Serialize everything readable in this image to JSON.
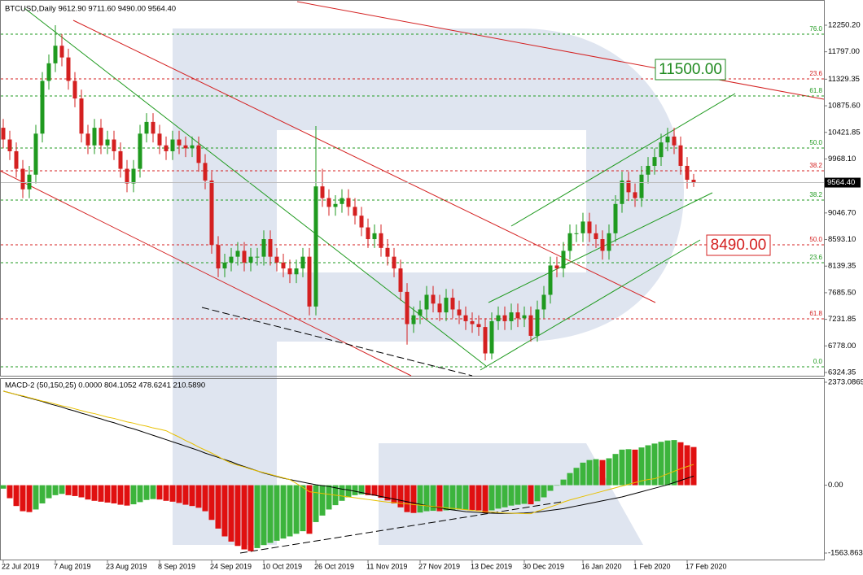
{
  "chart_data": [
    {
      "type": "candlestick",
      "title": "BTCUSD,Daily  9612.90 9711.60 9490.00 9564.40",
      "categories": [
        "22 Jul 2019",
        null,
        null,
        null,
        null,
        null,
        null,
        null,
        "7 Aug 2019",
        null,
        null,
        null,
        null,
        null,
        null,
        null,
        "23 Aug 2019",
        null,
        null,
        null,
        null,
        null,
        null,
        null,
        "8 Sep 2019",
        null,
        null,
        null,
        null,
        null,
        null,
        null,
        "24 Sep 2019",
        null,
        null,
        null,
        null,
        null,
        null,
        null,
        "10 Oct 2019",
        null,
        null,
        null,
        null,
        null,
        null,
        null,
        "26 Oct 2019",
        null,
        null,
        null,
        null,
        null,
        null,
        null,
        "11 Nov 2019",
        null,
        null,
        null,
        null,
        null,
        null,
        null,
        "27 Nov 2019",
        null,
        null,
        null,
        null,
        null,
        null,
        null,
        "13 Dec 2019",
        null,
        null,
        null,
        null,
        null,
        null,
        null,
        "30 Dec 2019",
        null,
        null,
        null,
        null,
        null,
        null,
        null,
        null,
        "16 Jan 2020",
        null,
        null,
        null,
        null,
        null,
        null,
        null,
        "1 Feb 2020",
        null,
        null,
        null,
        null,
        null,
        null,
        null,
        "17 Feb 2020",
        null
      ],
      "open": [
        10500,
        10300,
        10100,
        9800,
        9450,
        9700,
        10400,
        11300,
        11600,
        11900,
        11700,
        11300,
        11000,
        10400,
        10200,
        10500,
        10200,
        10300,
        10100,
        9800,
        9550,
        9800,
        10400,
        10600,
        10400,
        10200,
        10100,
        10300,
        10200,
        10150,
        10200,
        9900,
        9600,
        8500,
        8100,
        8200,
        8300,
        8400,
        8200,
        8300,
        8300,
        8600,
        8300,
        8200,
        8100,
        8000,
        8100,
        8300,
        7450,
        9500,
        9300,
        9150,
        9200,
        9300,
        9150,
        9000,
        8800,
        8600,
        8700,
        8450,
        8300,
        8100,
        7700,
        7150,
        7300,
        7400,
        7650,
        7500,
        7350,
        7600,
        7400,
        7300,
        7200,
        7150,
        7100,
        6650,
        7200,
        7300,
        7200,
        7350,
        7250,
        7300,
        6950,
        7400,
        7650,
        8150,
        8100,
        8400,
        8700,
        8700,
        8900,
        8700,
        8600,
        8400,
        8700,
        9200,
        9600,
        9400,
        9300,
        9700,
        9850,
        10000,
        10250,
        10350,
        10200,
        9850,
        9612.9
      ],
      "high": [
        10650,
        10450,
        10250,
        9950,
        9850,
        10550,
        11450,
        11750,
        12250,
        12100,
        11850,
        11450,
        11150,
        10550,
        10650,
        10650,
        10450,
        10450,
        10250,
        9950,
        9950,
        10550,
        10750,
        10750,
        10550,
        10350,
        10450,
        10450,
        10350,
        10350,
        10350,
        10050,
        9750,
        8650,
        8350,
        8450,
        8550,
        8550,
        8450,
        8450,
        8750,
        8750,
        8450,
        8350,
        8250,
        8250,
        8450,
        8450,
        10530,
        9800,
        9450,
        9350,
        9450,
        9450,
        9300,
        9150,
        8950,
        8850,
        8850,
        8600,
        8450,
        8250,
        7850,
        7450,
        7550,
        7800,
        7800,
        7650,
        7750,
        7750,
        7550,
        7450,
        7350,
        7300,
        7250,
        7350,
        7450,
        7450,
        7500,
        7500,
        7450,
        7450,
        7550,
        7800,
        8300,
        8300,
        8550,
        8850,
        8850,
        9050,
        9050,
        8850,
        8750,
        8850,
        9350,
        9750,
        9750,
        9550,
        9850,
        10000,
        10150,
        10400,
        10500,
        10500,
        10350,
        10000,
        9711.6
      ],
      "low": [
        10150,
        9950,
        9650,
        9300,
        9300,
        9550,
        10250,
        11150,
        11450,
        11550,
        11150,
        10850,
        10250,
        10050,
        10050,
        10050,
        10050,
        9950,
        9650,
        9400,
        9400,
        9650,
        10250,
        10250,
        10050,
        9950,
        9950,
        10050,
        10000,
        10000,
        9750,
        9450,
        8350,
        7950,
        7950,
        8050,
        8150,
        8050,
        8050,
        8150,
        8150,
        8150,
        8050,
        7950,
        7850,
        7850,
        7950,
        7300,
        7300,
        9150,
        9000,
        9000,
        9050,
        9000,
        8850,
        8650,
        8450,
        8450,
        8300,
        8150,
        7950,
        7550,
        6800,
        7000,
        7150,
        7250,
        7350,
        7200,
        7200,
        7250,
        7150,
        7050,
        7000,
        6950,
        6530,
        6550,
        7050,
        7050,
        7050,
        7100,
        7100,
        6850,
        6850,
        7250,
        7500,
        7950,
        7950,
        8250,
        8550,
        8550,
        8550,
        8450,
        8250,
        8250,
        8550,
        9050,
        9250,
        9150,
        9150,
        9550,
        9700,
        9850,
        10100,
        10050,
        9700,
        9460,
        9490
      ],
      "close": [
        10300,
        10100,
        9800,
        9450,
        9700,
        10400,
        11300,
        11600,
        11900,
        11700,
        11300,
        11000,
        10400,
        10200,
        10500,
        10200,
        10300,
        10100,
        9800,
        9550,
        9800,
        10400,
        10600,
        10400,
        10200,
        10100,
        10300,
        10200,
        10150,
        10200,
        9900,
        9600,
        8500,
        8100,
        8200,
        8300,
        8400,
        8200,
        8300,
        8300,
        8600,
        8300,
        8200,
        8100,
        8000,
        8100,
        8300,
        7450,
        9500,
        9300,
        9150,
        9200,
        9300,
        9150,
        9000,
        8800,
        8600,
        8700,
        8450,
        8300,
        8100,
        7700,
        7150,
        7300,
        7400,
        7650,
        7500,
        7350,
        7600,
        7400,
        7300,
        7200,
        7150,
        7100,
        6650,
        7200,
        7300,
        7200,
        7350,
        7250,
        7300,
        6950,
        7400,
        7650,
        8150,
        8100,
        8400,
        8700,
        8700,
        8900,
        8700,
        8600,
        8400,
        8700,
        9200,
        9600,
        9400,
        9300,
        9700,
        9850,
        10000,
        10250,
        10350,
        10200,
        9850,
        9612.9,
        9564.4
      ],
      "up_color": "#1f9a1f",
      "down_color": "#d42020",
      "last_label": "9564.40",
      "ylim": [
        6268.8,
        12680.4
      ],
      "yticks": [
        {
          "value": 12250.2,
          "label": "12250.20"
        },
        {
          "value": 11797,
          "label": "11797.00"
        },
        {
          "value": 11329.35,
          "label": "11329.35"
        },
        {
          "value": 10875.6,
          "label": "10875.60"
        },
        {
          "value": 10421.85,
          "label": "10421.85"
        },
        {
          "value": 9968.1,
          "label": "9968.10"
        },
        {
          "value": 9046.7,
          "label": "9046.70"
        },
        {
          "value": 8593.1,
          "label": "8593.10"
        },
        {
          "value": 8139.35,
          "label": "8139.35"
        },
        {
          "value": 7685.5,
          "label": "7685.50"
        },
        {
          "value": 7231.85,
          "label": "7231.85"
        },
        {
          "value": 6778,
          "label": "6778.00"
        },
        {
          "value": 6324.35,
          "label": "6324.35"
        }
      ],
      "levels": [
        {
          "label": "76.0",
          "value": 12097,
          "color": "#1f9a1f"
        },
        {
          "label": "23.6",
          "value": 11334,
          "color": "#d42020"
        },
        {
          "label": "61.8",
          "value": 11043,
          "color": "#1f9a1f"
        },
        {
          "label": "50.0",
          "value": 10154,
          "color": "#1f9a1f"
        },
        {
          "label": "38.2",
          "value": 9766,
          "color": "#d42020"
        },
        {
          "label": "38.2",
          "value": 9266,
          "color": "#1f9a1f"
        },
        {
          "label": "50.0",
          "value": 8503,
          "color": "#d42020"
        },
        {
          "label": "23.6",
          "value": 8198,
          "color": "#1f9a1f"
        },
        {
          "label": "61.8",
          "value": 7240,
          "color": "#d42020"
        },
        {
          "label": "0.0",
          "value": 6421,
          "color": "#1f9a1f"
        }
      ],
      "annotations": [
        "11500.00",
        "8490.00"
      ]
    },
    {
      "type": "macd",
      "title": "MACD-2 (50,150,25) 0.0000 804.1052 478.6241 210.5890",
      "values": [
        -80,
        -300,
        -480,
        -600,
        -620,
        -560,
        -420,
        -300,
        -230,
        -200,
        -230,
        -250,
        -280,
        -330,
        -360,
        -380,
        -400,
        -420,
        -450,
        -470,
        -440,
        -390,
        -340,
        -320,
        -330,
        -360,
        -380,
        -410,
        -450,
        -480,
        -520,
        -600,
        -800,
        -1000,
        -1180,
        -1300,
        -1400,
        -1480,
        -1520,
        -1450,
        -1380,
        -1330,
        -1280,
        -1230,
        -1180,
        -1120,
        -1060,
        -1120,
        -850,
        -700,
        -560,
        -460,
        -360,
        -280,
        -230,
        -210,
        -230,
        -240,
        -290,
        -350,
        -420,
        -510,
        -620,
        -640,
        -630,
        -600,
        -590,
        -600,
        -580,
        -570,
        -560,
        -560,
        -570,
        -580,
        -640,
        -580,
        -540,
        -510,
        -470,
        -450,
        -430,
        -440,
        -370,
        -280,
        -130,
        -10,
        130,
        280,
        400,
        520,
        580,
        600,
        580,
        620,
        720,
        820,
        830,
        820,
        870,
        920,
        960,
        1000,
        1030,
        1040,
        990,
        920,
        880
      ],
      "up_color": "#3cb43c",
      "down_color": "#e01010",
      "lines": [
        {
          "color": "#000000",
          "values": [
            2170,
            2130,
            2090,
            2050,
            2010,
            1970,
            1930,
            1880,
            1840,
            1800,
            1750,
            1710,
            1660,
            1620,
            1570,
            1530,
            1480,
            1440,
            1390,
            1340,
            1300,
            1250,
            1200,
            1150,
            1100,
            1050,
            1000,
            950,
            900,
            850,
            800,
            740,
            690,
            640,
            590,
            540,
            480,
            430,
            380,
            330,
            280,
            240,
            200,
            160,
            130,
            100,
            70,
            40,
            10,
            -10,
            -30,
            -60,
            -90,
            -110,
            -140,
            -170,
            -200,
            -230,
            -260,
            -290,
            -320,
            -350,
            -380,
            -410,
            -440,
            -470,
            -500,
            -520,
            -550,
            -570,
            -590,
            -610,
            -620,
            -630,
            -640,
            -645,
            -650,
            -650,
            -650,
            -645,
            -640,
            -630,
            -620,
            -600,
            -580,
            -560,
            -540,
            -510,
            -480,
            -450,
            -420,
            -390,
            -360,
            -330,
            -300,
            -270,
            -230,
            -190,
            -150,
            -110,
            -70,
            -30,
            10,
            60,
            110,
            160,
            210.589
          ]
        },
        {
          "color": "#e8c000",
          "values": [
            2170,
            2130,
            2090,
            2060,
            2020,
            1980,
            1940,
            1910,
            1870,
            1830,
            1800,
            1760,
            1720,
            1680,
            1650,
            1610,
            1570,
            1540,
            1500,
            1460,
            1430,
            1390,
            1360,
            1320,
            1290,
            1256,
            1180,
            1110,
            1030,
            960,
            880,
            810,
            740,
            660,
            580,
            506,
            460,
            420,
            370,
            330,
            290,
            250,
            210,
            170,
            130,
            40,
            -50,
            -150,
            -170,
            -190,
            -210,
            -230,
            -250,
            -270,
            -290,
            -310,
            -330,
            -350,
            -370,
            -390,
            -400,
            -420,
            -430,
            -445,
            -460,
            -475,
            -490,
            -505,
            -520,
            -535,
            -550,
            -565,
            -580,
            -595,
            -610,
            -620,
            -630,
            -640,
            -645,
            -650,
            -655,
            -656,
            -600,
            -550,
            -500,
            -450,
            -390,
            -340,
            -300,
            -260,
            -220,
            -180,
            -140,
            -100,
            -60,
            -20,
            20,
            60,
            100,
            130,
            150,
            200,
            260,
            320,
            380,
            430,
            478.6241
          ]
        }
      ],
      "ylim": [
        -1713.8,
        2466.8
      ],
      "yticks": [
        {
          "value": 2373.0869,
          "label": "2373.0869"
        },
        {
          "value": 0,
          "label": "0.00"
        },
        {
          "value": -1563.863,
          "label": "-1563.863"
        }
      ]
    }
  ]
}
